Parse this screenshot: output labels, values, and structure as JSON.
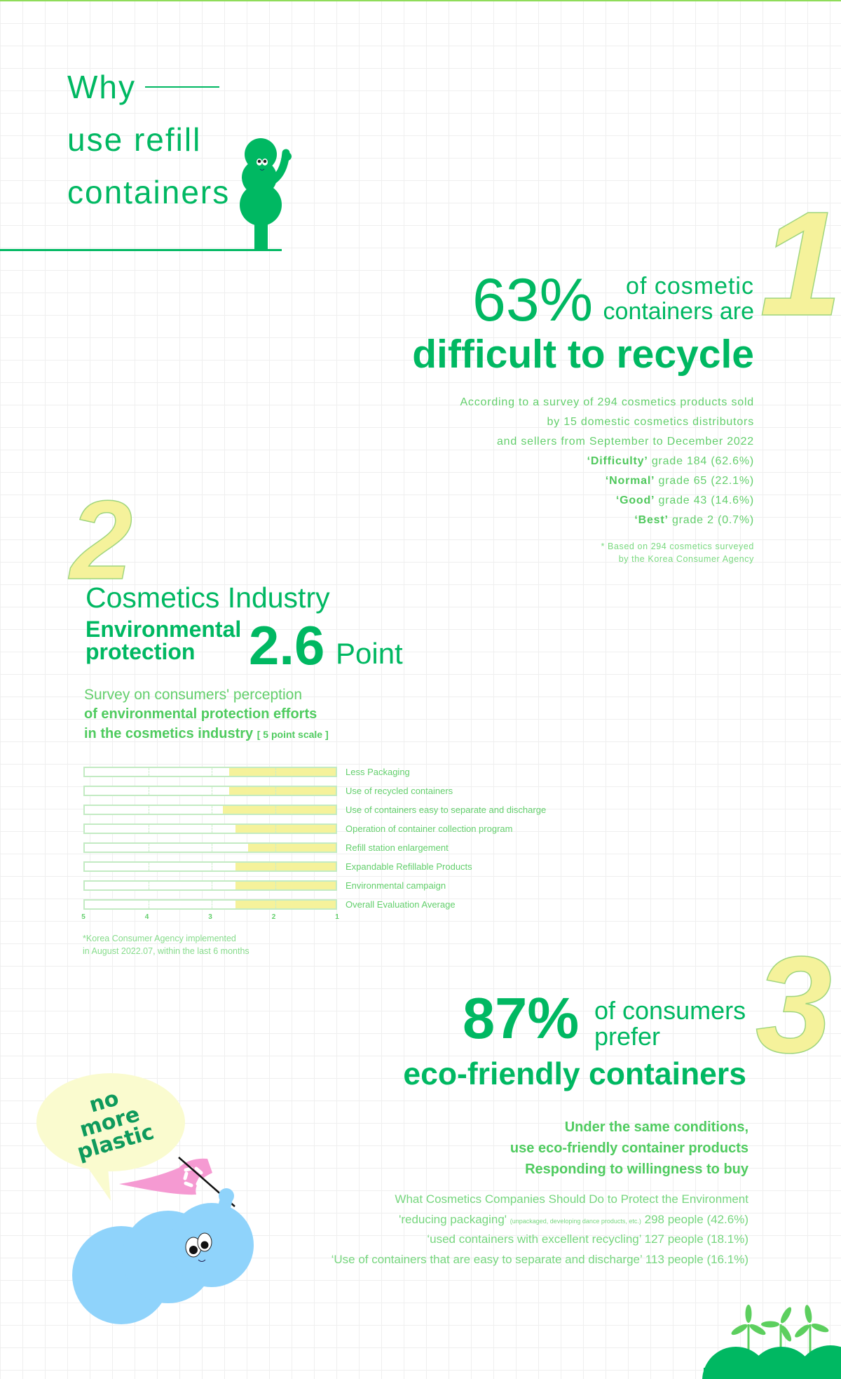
{
  "colors": {
    "primary": "#00b862",
    "light_text": "#63cf6c",
    "highlight": "#f5f29b",
    "blue": "#8fd3fb",
    "pink": "#f59ad2"
  },
  "header": {
    "line1": "Why",
    "line2": "use refill",
    "line3": "containers"
  },
  "section1": {
    "number": "1",
    "stat": "63%",
    "stat_suffix_1": "of cosmetic",
    "stat_suffix_2": "containers are",
    "headline": "difficult to recycle",
    "desc": [
      "According to a survey of 294 cosmetics products sold",
      "by 15 domestic cosmetics distributors",
      "and sellers from September to December 2022"
    ],
    "grades": [
      {
        "name": "‘Difficulty’",
        "rest": " grade 184 (62.6%)"
      },
      {
        "name": "‘Normal’",
        "rest": " grade 65 (22.1%)"
      },
      {
        "name": "‘Good’",
        "rest": " grade 43 (14.6%)"
      },
      {
        "name": "‘Best’",
        "rest": " grade 2 (0.7%)"
      }
    ],
    "footnote": [
      "* Based on 294 cosmetics surveyed",
      "by the Korea Consumer Agency"
    ]
  },
  "section2": {
    "number": "2",
    "title": "Cosmetics Industry",
    "subtitle_1": "Environmental",
    "subtitle_2": "protection",
    "score": "2.6",
    "score_unit": "Point",
    "survey_1": "Survey on consumers' perception",
    "survey_2": "of environmental protection efforts",
    "survey_3": "in the cosmetics industry",
    "scale_note": "[ 5 point scale ]",
    "footnote": [
      "*Korea Consumer Agency implemented",
      "in August 2022.07, within the last 6 months"
    ]
  },
  "chart_data": {
    "type": "bar",
    "orientation": "horizontal",
    "axis_reversed": true,
    "categories": [
      "Less Packaging",
      "Use of recycled containers",
      "Use of containers easy to separate and discharge",
      "Operation of container collection program",
      "Refill station enlargement",
      "Expandable Refillable Products",
      "Environmental campaign",
      "Overall Evaluation Average"
    ],
    "values": [
      2.7,
      2.7,
      2.8,
      2.6,
      2.4,
      2.6,
      2.6,
      2.6
    ],
    "xlim": [
      5,
      1
    ],
    "xticks": [
      "5",
      "4",
      "3",
      "2",
      "1"
    ],
    "title": "",
    "xlabel": "",
    "ylabel": ""
  },
  "section3": {
    "number": "3",
    "stat": "87%",
    "stat_suffix_1": "of consumers",
    "stat_suffix_2": "prefer",
    "headline": "eco-friendly containers",
    "bold_lines": [
      "Under the same conditions,",
      "use eco-friendly container products",
      "Responding to willingness to buy"
    ],
    "list_title": "What Cosmetics Companies Should Do to Protect the Environment",
    "list": [
      {
        "text": "'reducing packaging' ",
        "note": "(unpackaged, developing dance products, etc.)",
        "value": " 298 people (42.6%)"
      },
      {
        "text": "‘used containers with excellent recycling’",
        "note": "",
        "value": " 127 people (18.1%)"
      },
      {
        "text": "‘Use of containers that are easy to separate and discharge’",
        "note": "",
        "value": " 113 people (16.1%)"
      }
    ]
  },
  "bubble": {
    "line1": "no",
    "line2": "more",
    "line3": "plastic"
  }
}
